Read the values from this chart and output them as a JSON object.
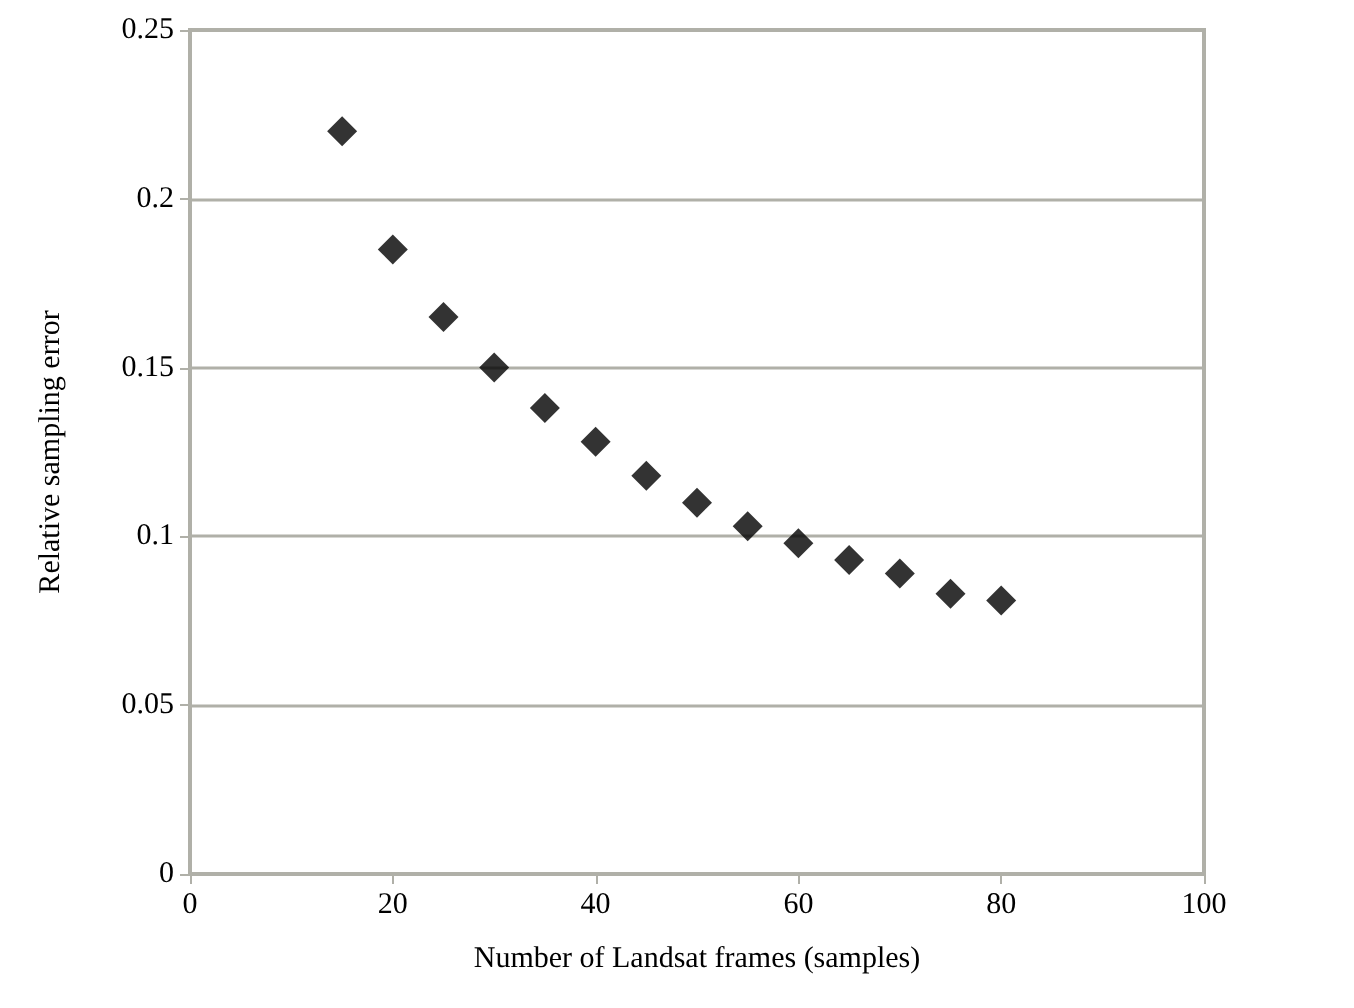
{
  "chart_data": {
    "type": "scatter",
    "xlabel": "Number of Landsat frames (samples)",
    "ylabel": "Relative sampling error",
    "x": [
      15,
      20,
      25,
      30,
      35,
      40,
      45,
      50,
      55,
      60,
      65,
      70,
      75,
      80
    ],
    "values": [
      0.22,
      0.185,
      0.165,
      0.15,
      0.138,
      0.128,
      0.118,
      0.11,
      0.103,
      0.098,
      0.093,
      0.089,
      0.083,
      0.081
    ],
    "color": "#000000",
    "marker": "diamond",
    "grid": "y",
    "xlim": [
      0,
      100
    ],
    "xticks": [
      0,
      20,
      40,
      60,
      80,
      100
    ],
    "ylim": [
      0,
      0.25
    ],
    "yticks": [
      0,
      0.05,
      0.1,
      0.15,
      0.2,
      0.25
    ]
  }
}
